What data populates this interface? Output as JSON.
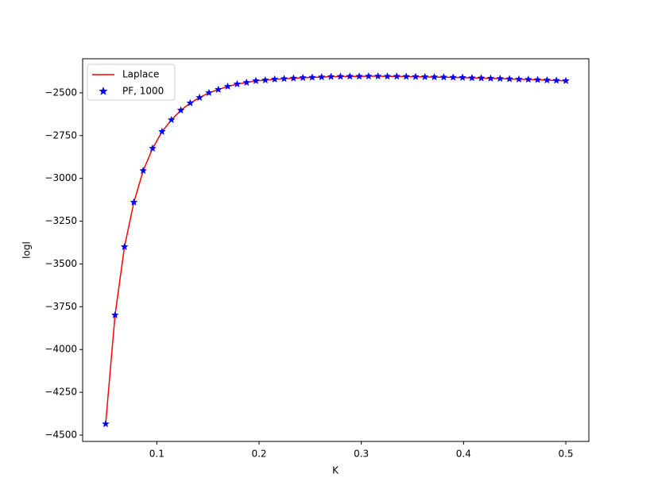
{
  "chart_data": {
    "type": "line",
    "x_label": "K",
    "y_label": "logl",
    "x": [
      0.05,
      0.0592,
      0.0684,
      0.0776,
      0.0867,
      0.0959,
      0.1051,
      0.1143,
      0.1235,
      0.1327,
      0.1418,
      0.151,
      0.1602,
      0.1694,
      0.1786,
      0.1878,
      0.1969,
      0.2061,
      0.2153,
      0.2245,
      0.2337,
      0.2429,
      0.252,
      0.2612,
      0.2704,
      0.2796,
      0.2888,
      0.298,
      0.3071,
      0.3163,
      0.3255,
      0.3347,
      0.3439,
      0.3531,
      0.3622,
      0.3714,
      0.3806,
      0.3898,
      0.399,
      0.4082,
      0.4173,
      0.4265,
      0.4357,
      0.4449,
      0.4541,
      0.4633,
      0.4724,
      0.4816,
      0.4908,
      0.5
    ],
    "series": [
      {
        "name": "Laplace",
        "color": "#ff0000",
        "style": "line",
        "values": [
          -4435,
          -3799,
          -3400,
          -3140,
          -2955,
          -2825,
          -2727,
          -2658,
          -2602,
          -2560,
          -2528,
          -2500,
          -2481,
          -2463,
          -2449,
          -2440,
          -2430,
          -2426,
          -2421,
          -2418,
          -2415,
          -2412,
          -2410,
          -2408,
          -2406,
          -2405,
          -2404,
          -2404,
          -2403,
          -2403,
          -2404,
          -2404,
          -2405,
          -2406,
          -2407,
          -2408,
          -2409,
          -2410,
          -2411,
          -2413,
          -2414,
          -2416,
          -2417,
          -2419,
          -2421,
          -2422,
          -2424,
          -2426,
          -2428,
          -2430
        ]
      },
      {
        "name": "PF, 1000",
        "color": "#0000ff",
        "style": "star",
        "values": [
          -4435,
          -3799,
          -3400,
          -3140,
          -2955,
          -2825,
          -2727,
          -2658,
          -2602,
          -2560,
          -2528,
          -2500,
          -2481,
          -2463,
          -2449,
          -2440,
          -2430,
          -2426,
          -2421,
          -2418,
          -2415,
          -2412,
          -2410,
          -2408,
          -2406,
          -2405,
          -2404,
          -2404,
          -2403,
          -2403,
          -2404,
          -2404,
          -2405,
          -2406,
          -2407,
          -2408,
          -2409,
          -2410,
          -2411,
          -2413,
          -2414,
          -2416,
          -2417,
          -2419,
          -2421,
          -2422,
          -2424,
          -2426,
          -2428,
          -2430
        ]
      }
    ],
    "xlim": [
      0.0275,
      0.5225
    ],
    "ylim": [
      -4537,
      -2301
    ],
    "xticks": [
      0.1,
      0.2,
      0.3,
      0.4,
      0.5
    ],
    "yticks": [
      {
        "value": -4500,
        "label": "−4500"
      },
      {
        "value": -4250,
        "label": "−4250"
      },
      {
        "value": -4000,
        "label": "−4000"
      },
      {
        "value": -3750,
        "label": "−3750"
      },
      {
        "value": -3500,
        "label": "−3500"
      },
      {
        "value": -3250,
        "label": "−3250"
      },
      {
        "value": -3000,
        "label": "−3000"
      },
      {
        "value": -2750,
        "label": "−2750"
      },
      {
        "value": -2500,
        "label": "−2500"
      }
    ],
    "legend": "upper left",
    "grid": false
  }
}
